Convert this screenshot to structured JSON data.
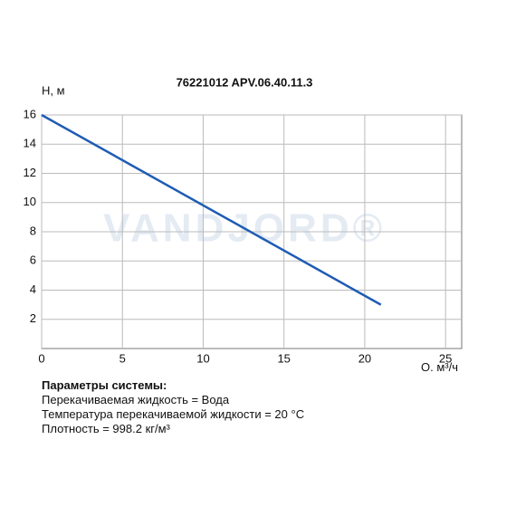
{
  "chart_data": {
    "type": "line",
    "title": "76221012 APV.06.40.11.3",
    "y_label": "H, м",
    "x_label": "Q, м³/ч",
    "watermark": "VANDJORD®",
    "x": [
      0,
      21
    ],
    "series": [
      {
        "name": "H",
        "color": "#1f5cb4",
        "values": [
          16,
          3
        ]
      }
    ],
    "xlim": [
      0,
      26
    ],
    "xticks": [
      0,
      5,
      10,
      15,
      20,
      25
    ],
    "ylim": [
      0,
      16
    ],
    "yticks": [
      2,
      4,
      6,
      8,
      10,
      12,
      14,
      16
    ],
    "grid": true
  },
  "system_parameters": {
    "title": "Параметры системы:",
    "lines": [
      "Перекачиваемая жидкость = Вода",
      "Температура перекачиваемой жидкости = 20 °C",
      "Плотность = 998.2 кг/м³"
    ]
  }
}
